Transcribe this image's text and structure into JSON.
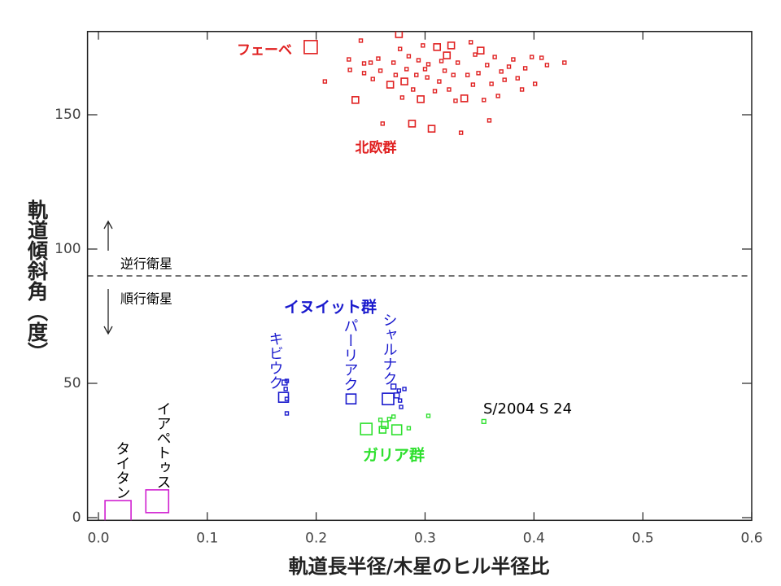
{
  "chart_data": {
    "type": "scatter",
    "xlabel": "軌道長半径/木星のヒル半径比",
    "ylabel": "軌道傾斜角（度）",
    "xlim": [
      -0.01,
      0.6
    ],
    "ylim": [
      -1,
      181
    ],
    "xticks": [
      {
        "value": 0,
        "label": "0.0"
      },
      0.1,
      0.2,
      0.3,
      0.4,
      0.5,
      0.6
    ],
    "yticks": [
      0,
      50,
      100,
      150
    ],
    "hline": 90,
    "annotations": [
      {
        "text": "イヌイット群",
        "color": "#1a1acd"
      },
      {
        "text": "逆行衛星",
        "color": "#000000"
      },
      {
        "text": "順行衛星",
        "color": "#000000"
      }
    ],
    "series": [
      {
        "name": "フェーベ",
        "color": "#e02020",
        "x": [
          0.195
        ],
        "values": [
          175.2
        ],
        "sizes": [
          4
        ]
      },
      {
        "name": "北欧群",
        "color": "#e02020",
        "x": [
          0.208,
          0.23,
          0.231,
          0.236,
          0.244,
          0.241,
          0.244,
          0.25,
          0.252,
          0.257,
          0.259,
          0.261,
          0.268,
          0.271,
          0.273,
          0.276,
          0.277,
          0.279,
          0.281,
          0.283,
          0.285,
          0.288,
          0.289,
          0.292,
          0.294,
          0.296,
          0.298,
          0.3,
          0.302,
          0.303,
          0.306,
          0.309,
          0.311,
          0.313,
          0.315,
          0.318,
          0.32,
          0.322,
          0.324,
          0.326,
          0.328,
          0.33,
          0.333,
          0.336,
          0.339,
          0.342,
          0.344,
          0.346,
          0.349,
          0.351,
          0.354,
          0.357,
          0.359,
          0.361,
          0.364,
          0.367,
          0.37,
          0.373,
          0.377,
          0.381,
          0.385,
          0.389,
          0.392,
          0.398,
          0.401,
          0.407,
          0.412,
          0.428
        ],
        "values": [
          162.4,
          170.6,
          166.7,
          155.5,
          165.5,
          177.6,
          169.1,
          169.4,
          163.3,
          170.9,
          166.4,
          146.7,
          161.2,
          169.4,
          164.8,
          180.0,
          174.5,
          156.4,
          162.4,
          167.0,
          171.8,
          146.7,
          159.4,
          164.8,
          170.3,
          155.8,
          175.8,
          167.0,
          163.9,
          168.8,
          144.8,
          158.8,
          175.2,
          162.4,
          170.0,
          166.4,
          172.1,
          159.4,
          175.8,
          164.8,
          155.2,
          169.4,
          143.3,
          156.1,
          164.8,
          177.0,
          161.2,
          172.4,
          165.5,
          173.9,
          155.5,
          168.5,
          147.9,
          161.5,
          171.5,
          157.0,
          166.1,
          163.0,
          167.9,
          170.6,
          163.6,
          159.4,
          167.3,
          171.5,
          161.5,
          171.2,
          168.5,
          169.4
        ],
        "sizes": [
          1,
          1,
          1,
          2,
          1,
          1,
          1,
          1,
          1,
          1,
          1,
          1,
          2,
          1,
          1,
          2,
          1,
          1,
          2,
          1,
          1,
          2,
          1,
          1,
          1,
          2,
          1,
          1,
          1,
          1,
          2,
          1,
          2,
          1,
          1,
          1,
          2,
          1,
          2,
          1,
          1,
          1,
          1,
          2,
          1,
          1,
          1,
          1,
          1,
          2,
          1,
          1,
          1,
          1,
          1,
          1,
          1,
          1,
          1,
          1,
          1,
          1,
          1,
          1,
          1,
          1,
          1,
          1
        ]
      },
      {
        "name": "キビウク",
        "color": "#1a1acd",
        "x": [
          0.17,
          0.171,
          0.173,
          0.172,
          0.173,
          0.173
        ],
        "values": [
          44.8,
          50.3,
          50.9,
          47.9,
          44.2,
          38.8
        ],
        "sizes": [
          3,
          1.5,
          1,
          1,
          1,
          1
        ]
      },
      {
        "name": "パーリアク",
        "color": "#1a1acd",
        "x": [
          0.232
        ],
        "values": [
          44.2
        ],
        "sizes": [
          3
        ]
      },
      {
        "name": "シャルナク",
        "color": "#1a1acd",
        "x": [
          0.266,
          0.271,
          0.274,
          0.276,
          0.277,
          0.278,
          0.281
        ],
        "values": [
          44.2,
          48.8,
          45.5,
          47.3,
          43.6,
          41.2,
          47.9
        ],
        "sizes": [
          3.5,
          1.5,
          1.5,
          1,
          1,
          1,
          1
        ]
      },
      {
        "name": "ガリア群",
        "color": "#2ee02e",
        "x": [
          0.246,
          0.274,
          0.259,
          0.263,
          0.267,
          0.271,
          0.261,
          0.285,
          0.303
        ],
        "values": [
          33.0,
          32.7,
          36.4,
          34.5,
          36.7,
          37.6,
          32.7,
          33.3,
          37.9
        ],
        "sizes": [
          3.5,
          3,
          1,
          2,
          1,
          1,
          2,
          1,
          1
        ]
      },
      {
        "name": "S/2004 S 24",
        "color": "#2ee02e",
        "label_color": "#000000",
        "x": [
          0.354
        ],
        "values": [
          35.8
        ],
        "sizes": [
          1.2
        ]
      },
      {
        "name": "タイタン",
        "color": "#d020d0",
        "label_color": "#000000",
        "x": [
          0.018
        ],
        "values": [
          1.5
        ],
        "sizes": [
          8
        ]
      },
      {
        "name": "イアペトゥス",
        "color": "#d020d0",
        "label_color": "#000000",
        "x": [
          0.054
        ],
        "values": [
          6.1
        ],
        "sizes": [
          7
        ]
      }
    ]
  }
}
